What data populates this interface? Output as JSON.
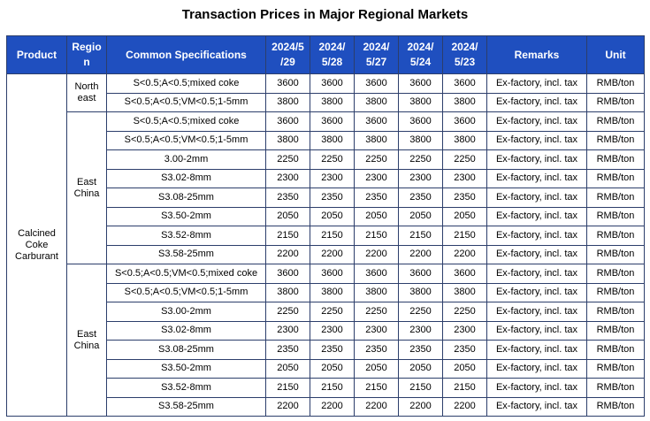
{
  "title": "Transaction Prices in Major Regional Markets",
  "headers": {
    "product": "Product",
    "region_line1": "Regio",
    "region_line2": "n",
    "spec": "Common Specifications",
    "d1_line1": "2024/5",
    "d1_line2": "/29",
    "d2_line1": "2024/",
    "d2_line2": "5/28",
    "d3_line1": "2024/",
    "d3_line2": "5/27",
    "d4_line1": "2024/",
    "d4_line2": "5/24",
    "d5_line1": "2024/",
    "d5_line2": "5/23",
    "remarks": "Remarks",
    "unit": "Unit"
  },
  "product": {
    "line1": "Calcined",
    "line2": "Coke",
    "line3": "Carburant"
  },
  "groups": [
    {
      "region_line1": "North",
      "region_line2": "east",
      "rows": [
        {
          "spec": "S<0.5;A<0.5;mixed coke",
          "p": [
            "3600",
            "3600",
            "3600",
            "3600",
            "3600"
          ],
          "remarks": "Ex-factory, incl. tax",
          "unit": "RMB/ton"
        },
        {
          "spec": "S<0.5;A<0.5;VM<0.5;1-5mm",
          "p": [
            "3800",
            "3800",
            "3800",
            "3800",
            "3800"
          ],
          "remarks": "Ex-factory, incl. tax",
          "unit": "RMB/ton"
        }
      ]
    },
    {
      "region_line1": "East",
      "region_line2": "China",
      "rows": [
        {
          "spec": "S<0.5;A<0.5;mixed coke",
          "p": [
            "3600",
            "3600",
            "3600",
            "3600",
            "3600"
          ],
          "remarks": "Ex-factory, incl. tax",
          "unit": "RMB/ton"
        },
        {
          "spec": "S<0.5;A<0.5;VM<0.5;1-5mm",
          "p": [
            "3800",
            "3800",
            "3800",
            "3800",
            "3800"
          ],
          "remarks": "Ex-factory, incl. tax",
          "unit": "RMB/ton"
        },
        {
          "spec": "3.00-2mm",
          "p": [
            "2250",
            "2250",
            "2250",
            "2250",
            "2250"
          ],
          "remarks": "Ex-factory, incl. tax",
          "unit": "RMB/ton"
        },
        {
          "spec": "S3.02-8mm",
          "p": [
            "2300",
            "2300",
            "2300",
            "2300",
            "2300"
          ],
          "remarks": "Ex-factory, incl. tax",
          "unit": "RMB/ton"
        },
        {
          "spec": "S3.08-25mm",
          "p": [
            "2350",
            "2350",
            "2350",
            "2350",
            "2350"
          ],
          "remarks": "Ex-factory, incl. tax",
          "unit": "RMB/ton"
        },
        {
          "spec": "S3.50-2mm",
          "p": [
            "2050",
            "2050",
            "2050",
            "2050",
            "2050"
          ],
          "remarks": "Ex-factory, incl. tax",
          "unit": "RMB/ton"
        },
        {
          "spec": "S3.52-8mm",
          "p": [
            "2150",
            "2150",
            "2150",
            "2150",
            "2150"
          ],
          "remarks": "Ex-factory, incl. tax",
          "unit": "RMB/ton"
        },
        {
          "spec": "S3.58-25mm",
          "p": [
            "2200",
            "2200",
            "2200",
            "2200",
            "2200"
          ],
          "remarks": "Ex-factory, incl. tax",
          "unit": "RMB/ton"
        }
      ]
    },
    {
      "region_line1": "East",
      "region_line2": "China",
      "rows": [
        {
          "spec": "S<0.5;A<0.5;VM<0.5;mixed coke",
          "p": [
            "3600",
            "3600",
            "3600",
            "3600",
            "3600"
          ],
          "remarks": "Ex-factory, incl. tax",
          "unit": "RMB/ton"
        },
        {
          "spec": "S<0.5;A<0.5;VM<0.5;1-5mm",
          "p": [
            "3800",
            "3800",
            "3800",
            "3800",
            "3800"
          ],
          "remarks": "Ex-factory, incl. tax",
          "unit": "RMB/ton"
        },
        {
          "spec": "S3.00-2mm",
          "p": [
            "2250",
            "2250",
            "2250",
            "2250",
            "2250"
          ],
          "remarks": "Ex-factory, incl. tax",
          "unit": "RMB/ton"
        },
        {
          "spec": "S3.02-8mm",
          "p": [
            "2300",
            "2300",
            "2300",
            "2300",
            "2300"
          ],
          "remarks": "Ex-factory, incl. tax",
          "unit": "RMB/ton"
        },
        {
          "spec": "S3.08-25mm",
          "p": [
            "2350",
            "2350",
            "2350",
            "2350",
            "2350"
          ],
          "remarks": "Ex-factory, incl. tax",
          "unit": "RMB/ton"
        },
        {
          "spec": "S3.50-2mm",
          "p": [
            "2050",
            "2050",
            "2050",
            "2050",
            "2050"
          ],
          "remarks": "Ex-factory, incl. tax",
          "unit": "RMB/ton"
        },
        {
          "spec": "S3.52-8mm",
          "p": [
            "2150",
            "2150",
            "2150",
            "2150",
            "2150"
          ],
          "remarks": "Ex-factory, incl. tax",
          "unit": "RMB/ton"
        },
        {
          "spec": "S3.58-25mm",
          "p": [
            "2200",
            "2200",
            "2200",
            "2200",
            "2200"
          ],
          "remarks": "Ex-factory, incl. tax",
          "unit": "RMB/ton"
        }
      ]
    }
  ]
}
